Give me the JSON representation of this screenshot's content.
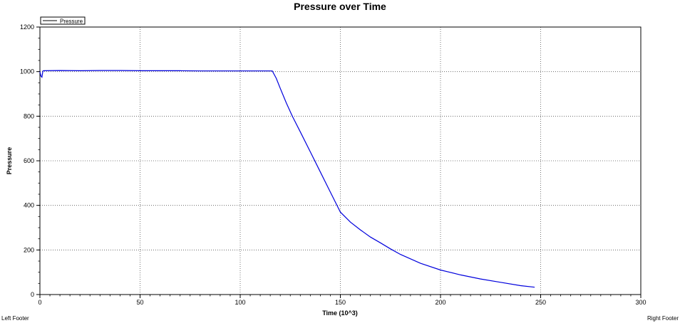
{
  "chart_data": {
    "type": "line",
    "title": "Pressure over Time",
    "xlabel": "Time (10^3)",
    "ylabel": "Pressure",
    "xlim": [
      0,
      300
    ],
    "ylim": [
      0,
      1200
    ],
    "x_ticks": [
      0,
      50,
      100,
      150,
      200,
      250,
      300
    ],
    "y_ticks": [
      0,
      200,
      400,
      600,
      800,
      1000,
      1200
    ],
    "grid": true,
    "legend_position": "top-left",
    "series": [
      {
        "name": "Pressure",
        "color": "#0000dd",
        "x": [
          0,
          0.5,
          1,
          1.5,
          2,
          10,
          20,
          30,
          40,
          50,
          60,
          70,
          80,
          90,
          100,
          110,
          116,
          118,
          120,
          123,
          126,
          130,
          135,
          140,
          145,
          150,
          155,
          160,
          165,
          170,
          175,
          180,
          190,
          200,
          210,
          220,
          230,
          240,
          247
        ],
        "y": [
          1000,
          980,
          975,
          1003,
          1004,
          1005,
          1004,
          1005,
          1005,
          1004,
          1004,
          1004,
          1003,
          1003,
          1003,
          1003,
          1003,
          970,
          925,
          860,
          800,
          730,
          640,
          550,
          460,
          370,
          325,
          290,
          258,
          232,
          205,
          180,
          140,
          110,
          88,
          70,
          55,
          40,
          33
        ]
      }
    ]
  },
  "footer": {
    "left": "Left Footer",
    "right": "Right Footer"
  }
}
